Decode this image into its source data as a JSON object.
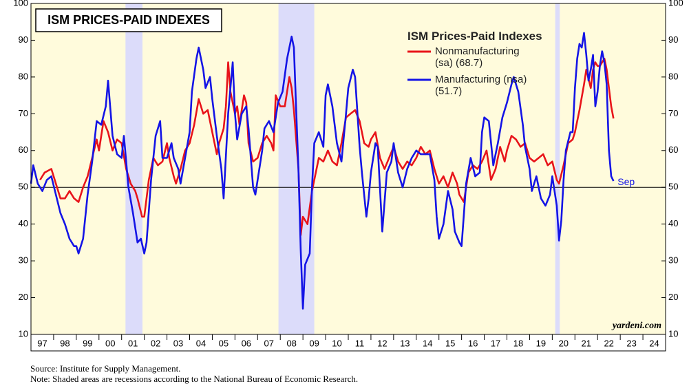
{
  "chart_data": {
    "type": "line",
    "title": "ISM PRICES-PAID INDEXES",
    "legend_title": "ISM Prices-Paid Indexes",
    "annotation": "Sep",
    "watermark": "yardeni.com",
    "source": "Source: Institute for Supply Management.",
    "note": "Note: Shaded areas are recessions according to the National Bureau of Economic Research.",
    "xlim": [
      1997,
      2025
    ],
    "ylim": [
      10,
      100
    ],
    "yticks": [
      10,
      20,
      30,
      40,
      50,
      60,
      70,
      80,
      90,
      100
    ],
    "xticks": [
      {
        "value": 1997,
        "label": "97"
      },
      {
        "value": 1998,
        "label": "98"
      },
      {
        "value": 1999,
        "label": "99"
      },
      {
        "value": 2000,
        "label": "00"
      },
      {
        "value": 2001,
        "label": "01"
      },
      {
        "value": 2002,
        "label": "02"
      },
      {
        "value": 2003,
        "label": "03"
      },
      {
        "value": 2004,
        "label": "04"
      },
      {
        "value": 2005,
        "label": "05"
      },
      {
        "value": 2006,
        "label": "06"
      },
      {
        "value": 2007,
        "label": "07"
      },
      {
        "value": 2008,
        "label": "08"
      },
      {
        "value": 2009,
        "label": "09"
      },
      {
        "value": 2010,
        "label": "10"
      },
      {
        "value": 2011,
        "label": "11"
      },
      {
        "value": 2012,
        "label": "12"
      },
      {
        "value": 2013,
        "label": "13"
      },
      {
        "value": 2014,
        "label": "14"
      },
      {
        "value": 2015,
        "label": "15"
      },
      {
        "value": 2016,
        "label": "16"
      },
      {
        "value": 2017,
        "label": "17"
      },
      {
        "value": 2018,
        "label": "18"
      },
      {
        "value": 2019,
        "label": "19"
      },
      {
        "value": 2020,
        "label": "20"
      },
      {
        "value": 2021,
        "label": "21"
      },
      {
        "value": 2022,
        "label": "22"
      },
      {
        "value": 2023,
        "label": "23"
      },
      {
        "value": 2024,
        "label": "24"
      }
    ],
    "grid": false,
    "hline": 50,
    "recessions": [
      [
        2001.17,
        2001.92
      ],
      [
        2007.92,
        2009.5
      ],
      [
        2020.13,
        2020.33
      ]
    ],
    "recession_color": "#dcdcfa",
    "background": "#fffbdc",
    "series": [
      {
        "name": "Nonmanufacturing (sa) (68.7)",
        "color": "#e8141a",
        "x": [
          1997.4,
          1997.6,
          1997.9,
          1998.1,
          1998.3,
          1998.5,
          1998.7,
          1998.9,
          1999.1,
          1999.3,
          1999.5,
          1999.7,
          1999.9,
          2000.0,
          2000.2,
          2000.4,
          2000.6,
          2000.8,
          2001.0,
          2001.2,
          2001.4,
          2001.6,
          2001.7,
          2001.9,
          2002.0,
          2002.2,
          2002.4,
          2002.6,
          2002.8,
          2003.0,
          2003.1,
          2003.3,
          2003.4,
          2003.6,
          2003.8,
          2004.0,
          2004.2,
          2004.4,
          2004.6,
          2004.8,
          2005.0,
          2005.2,
          2005.3,
          2005.5,
          2005.6,
          2005.7,
          2005.8,
          2006.0,
          2006.1,
          2006.2,
          2006.4,
          2006.5,
          2006.6,
          2006.8,
          2007.0,
          2007.2,
          2007.4,
          2007.6,
          2007.7,
          2007.8,
          2008.0,
          2008.2,
          2008.4,
          2008.5,
          2008.6,
          2008.8,
          2008.9,
          2009.0,
          2009.2,
          2009.4,
          2009.5,
          2009.7,
          2009.9,
          2010.1,
          2010.3,
          2010.5,
          2010.7,
          2010.9,
          2011.1,
          2011.3,
          2011.5,
          2011.7,
          2011.9,
          2012.0,
          2012.2,
          2012.4,
          2012.6,
          2012.8,
          2013.0,
          2013.2,
          2013.4,
          2013.6,
          2013.8,
          2014.0,
          2014.2,
          2014.4,
          2014.6,
          2014.8,
          2015.0,
          2015.2,
          2015.4,
          2015.6,
          2015.8,
          2015.9,
          2016.1,
          2016.3,
          2016.5,
          2016.7,
          2016.9,
          2017.1,
          2017.3,
          2017.5,
          2017.7,
          2017.9,
          2018.0,
          2018.2,
          2018.4,
          2018.6,
          2018.8,
          2019.0,
          2019.2,
          2019.4,
          2019.6,
          2019.8,
          2020.0,
          2020.2,
          2020.3,
          2020.5,
          2020.7,
          2020.9,
          2021.0,
          2021.2,
          2021.4,
          2021.5,
          2021.7,
          2021.8,
          2021.9,
          2022.0,
          2022.1,
          2022.3,
          2022.4,
          2022.5,
          2022.6,
          2022.7
        ],
        "values": [
          52,
          54,
          55,
          51,
          47,
          47,
          49,
          47,
          46,
          50,
          53,
          58,
          63,
          60,
          68,
          65,
          60,
          63,
          62,
          55,
          51,
          49,
          47,
          42,
          42,
          52,
          58,
          56,
          57,
          62,
          58,
          53,
          51,
          55,
          60,
          62,
          67,
          74,
          70,
          71,
          65,
          59,
          62,
          66,
          72,
          84,
          76,
          70,
          72,
          67,
          75,
          73,
          62,
          57,
          58,
          62,
          64,
          62,
          60,
          75,
          72,
          72,
          80,
          77,
          71,
          55,
          37,
          42,
          40,
          49,
          52,
          58,
          57,
          60,
          57,
          56,
          62,
          69,
          70,
          71,
          68,
          62,
          61,
          63,
          65,
          58,
          55,
          58,
          61,
          57,
          55,
          57,
          56,
          58,
          61,
          59,
          60,
          55,
          51,
          53,
          50,
          54,
          51,
          48,
          46,
          54,
          56,
          55,
          57,
          60,
          52,
          55,
          61,
          57,
          60,
          64,
          63,
          61,
          62,
          58,
          57,
          58,
          59,
          56,
          57,
          52,
          51,
          56,
          62,
          63,
          65,
          71,
          78,
          82,
          77,
          82,
          84,
          83,
          83,
          85,
          82,
          77,
          72,
          68.7
        ]
      },
      {
        "name": "Manufacturing (nsa) (51.7)",
        "color": "#1414e6",
        "x": [
          1997.0,
          1997.1,
          1997.3,
          1997.5,
          1997.7,
          1997.9,
          1998.1,
          1998.3,
          1998.5,
          1998.7,
          1998.9,
          1999.0,
          1999.1,
          1999.3,
          1999.5,
          1999.7,
          1999.9,
          2000.1,
          2000.3,
          2000.4,
          2000.6,
          2000.8,
          2001.0,
          2001.1,
          2001.3,
          2001.5,
          2001.7,
          2001.85,
          2002.0,
          2002.1,
          2002.3,
          2002.5,
          2002.7,
          2002.8,
          2003.0,
          2003.2,
          2003.3,
          2003.5,
          2003.6,
          2003.8,
          2004.0,
          2004.1,
          2004.3,
          2004.4,
          2004.6,
          2004.7,
          2004.9,
          2005.0,
          2005.2,
          2005.4,
          2005.5,
          2005.7,
          2005.9,
          2006.0,
          2006.1,
          2006.3,
          2006.5,
          2006.6,
          2006.8,
          2006.9,
          2007.0,
          2007.2,
          2007.3,
          2007.5,
          2007.7,
          2007.9,
          2008.1,
          2008.3,
          2008.5,
          2008.6,
          2008.7,
          2008.8,
          2008.9,
          2009.0,
          2009.1,
          2009.3,
          2009.4,
          2009.5,
          2009.7,
          2009.9,
          2010.0,
          2010.1,
          2010.3,
          2010.5,
          2010.7,
          2010.9,
          2011.0,
          2011.2,
          2011.3,
          2011.5,
          2011.6,
          2011.8,
          2011.9,
          2012.0,
          2012.2,
          2012.3,
          2012.5,
          2012.7,
          2012.9,
          2013.0,
          2013.2,
          2013.4,
          2013.6,
          2013.8,
          2014.0,
          2014.2,
          2014.4,
          2014.6,
          2014.8,
          2014.9,
          2015.0,
          2015.2,
          2015.4,
          2015.6,
          2015.7,
          2015.9,
          2016.0,
          2016.2,
          2016.4,
          2016.6,
          2016.8,
          2016.9,
          2017.0,
          2017.2,
          2017.4,
          2017.6,
          2017.8,
          2018.0,
          2018.2,
          2018.3,
          2018.5,
          2018.7,
          2018.8,
          2019.0,
          2019.1,
          2019.3,
          2019.5,
          2019.7,
          2019.9,
          2020.0,
          2020.2,
          2020.3,
          2020.4,
          2020.5,
          2020.6,
          2020.8,
          2020.9,
          2021.0,
          2021.1,
          2021.2,
          2021.3,
          2021.4,
          2021.5,
          2021.6,
          2021.7,
          2021.8,
          2021.9,
          2022.0,
          2022.1,
          2022.2,
          2022.3,
          2022.4,
          2022.5,
          2022.6,
          2022.7
        ],
        "values": [
          51,
          56,
          51,
          49,
          52,
          53,
          48,
          43,
          40,
          36,
          34,
          34,
          32,
          36,
          48,
          57,
          68,
          67,
          72,
          79,
          64,
          59,
          58,
          64,
          50,
          43,
          35,
          36,
          32,
          35,
          52,
          64,
          68,
          58,
          58,
          62,
          58,
          55,
          51,
          58,
          65,
          76,
          85,
          88,
          82,
          77,
          80,
          74,
          64,
          55,
          47,
          70,
          84,
          70,
          63,
          70,
          72,
          66,
          50,
          48,
          52,
          60,
          66,
          68,
          65,
          73,
          76,
          85,
          91,
          88,
          71,
          55,
          33,
          17,
          29,
          32,
          50,
          62,
          65,
          61,
          75,
          78,
          72,
          62,
          57,
          70,
          77,
          82,
          80,
          61,
          54,
          42,
          47,
          54,
          62,
          61,
          38,
          54,
          57,
          62,
          54,
          50,
          55,
          58,
          60,
          59,
          59,
          59,
          52,
          42,
          36,
          40,
          49,
          44,
          38,
          35,
          34,
          51,
          58,
          53,
          54,
          65,
          69,
          68,
          56,
          62,
          69,
          73,
          78,
          80,
          76,
          67,
          61,
          55,
          49,
          53,
          47,
          45,
          48,
          53,
          45,
          35.5,
          41,
          52,
          60,
          65,
          65,
          77,
          85,
          89,
          88,
          92,
          86,
          79,
          82,
          86,
          72,
          76,
          83,
          87,
          84,
          78,
          60,
          53,
          51.7
        ]
      }
    ]
  }
}
